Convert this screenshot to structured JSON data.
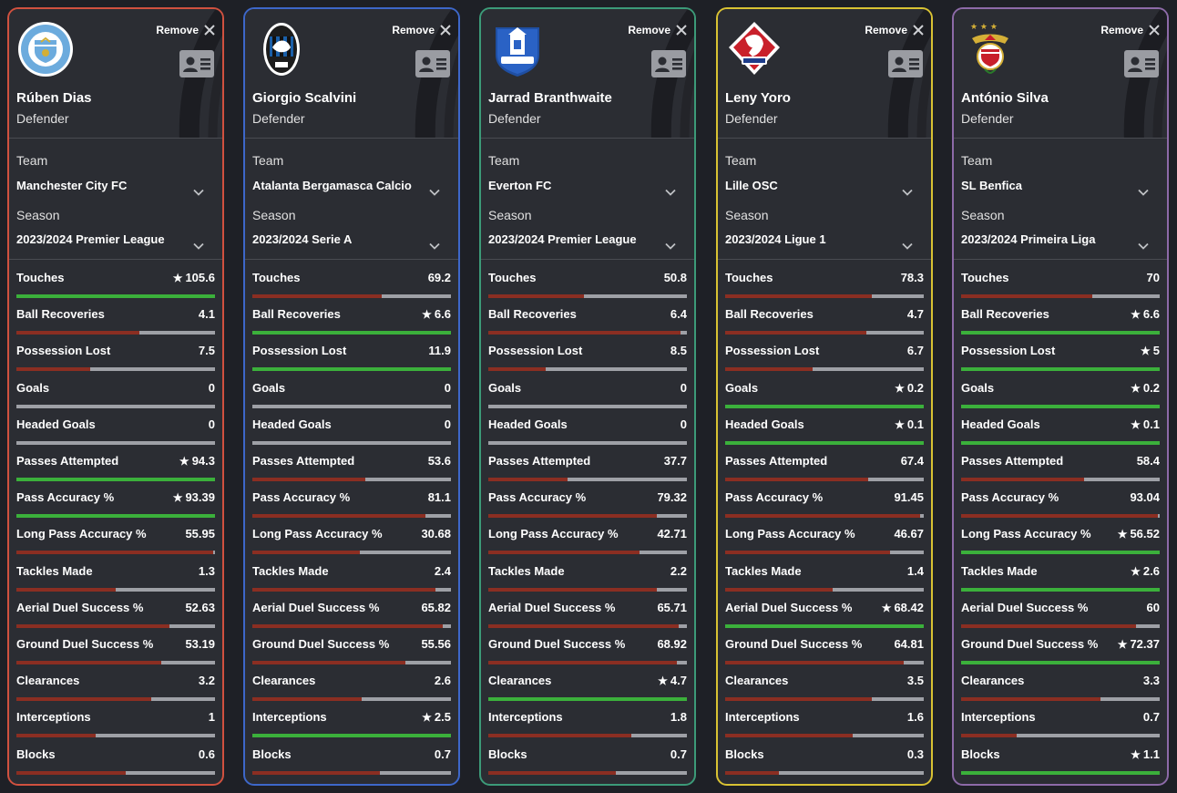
{
  "ui": {
    "remove_label": "Remove",
    "team_label": "Team",
    "season_label": "Season",
    "star_glyph": "★",
    "good_color": "#3bb03b",
    "low_color": "#8b2e22",
    "track_color": "#9ea0a6"
  },
  "stat_labels": [
    "Touches",
    "Ball Recoveries",
    "Possession Lost",
    "Goals",
    "Headed Goals",
    "Passes Attempted",
    "Pass Accuracy %",
    "Long Pass Accuracy %",
    "Tackles Made",
    "Aerial Duel Success %",
    "Ground Duel Success %",
    "Clearances",
    "Interceptions",
    "Blocks"
  ],
  "players": [
    {
      "name": "Rúben Dias",
      "position": "Defender",
      "team": "Manchester City FC",
      "season": "2023/2024 Premier League",
      "border": "#d0513f",
      "logo_icon": "manchester-city-crest-icon",
      "stats": [
        {
          "value": "105.6",
          "best": true,
          "level": 1.0
        },
        {
          "value": "4.1",
          "level": 0.62
        },
        {
          "value": "7.5",
          "level": 0.37
        },
        {
          "value": "0",
          "level": 0.0
        },
        {
          "value": "0",
          "level": 0.0
        },
        {
          "value": "94.3",
          "best": true,
          "level": 1.0
        },
        {
          "value": "93.39",
          "best": true,
          "level": 1.0
        },
        {
          "value": "55.95",
          "level": 0.99
        },
        {
          "value": "1.3",
          "level": 0.5
        },
        {
          "value": "52.63",
          "level": 0.77
        },
        {
          "value": "53.19",
          "level": 0.73
        },
        {
          "value": "3.2",
          "level": 0.68
        },
        {
          "value": "1",
          "level": 0.4
        },
        {
          "value": "0.6",
          "level": 0.55
        }
      ]
    },
    {
      "name": "Giorgio Scalvini",
      "position": "Defender",
      "team": "Atalanta Bergamasca Calcio",
      "season": "2023/2024 Serie A",
      "border": "#3d67c9",
      "logo_icon": "atalanta-crest-icon",
      "stats": [
        {
          "value": "69.2",
          "level": 0.65
        },
        {
          "value": "6.6",
          "best": true,
          "level": 1.0
        },
        {
          "value": "11.9",
          "level": 1.0
        },
        {
          "value": "0",
          "level": 0.0
        },
        {
          "value": "0",
          "level": 0.0
        },
        {
          "value": "53.6",
          "level": 0.57
        },
        {
          "value": "81.1",
          "level": 0.87
        },
        {
          "value": "30.68",
          "level": 0.54
        },
        {
          "value": "2.4",
          "level": 0.92
        },
        {
          "value": "65.82",
          "level": 0.96
        },
        {
          "value": "55.56",
          "level": 0.77
        },
        {
          "value": "2.6",
          "level": 0.55
        },
        {
          "value": "2.5",
          "best": true,
          "level": 1.0
        },
        {
          "value": "0.7",
          "level": 0.64
        }
      ]
    },
    {
      "name": "Jarrad Branthwaite",
      "position": "Defender",
      "team": "Everton FC",
      "season": "2023/2024 Premier League",
      "border": "#3c9a78",
      "logo_icon": "everton-crest-icon",
      "stats": [
        {
          "value": "50.8",
          "level": 0.48
        },
        {
          "value": "6.4",
          "level": 0.97
        },
        {
          "value": "8.5",
          "level": 0.29
        },
        {
          "value": "0",
          "level": 0.0
        },
        {
          "value": "0",
          "level": 0.0
        },
        {
          "value": "37.7",
          "level": 0.4
        },
        {
          "value": "79.32",
          "level": 0.85
        },
        {
          "value": "42.71",
          "level": 0.76
        },
        {
          "value": "2.2",
          "level": 0.85
        },
        {
          "value": "65.71",
          "level": 0.96
        },
        {
          "value": "68.92",
          "level": 0.95
        },
        {
          "value": "4.7",
          "best": true,
          "level": 1.0
        },
        {
          "value": "1.8",
          "level": 0.72
        },
        {
          "value": "0.7",
          "level": 0.64
        }
      ]
    },
    {
      "name": "Leny Yoro",
      "position": "Defender",
      "team": "Lille OSC",
      "season": "2023/2024 Ligue 1",
      "border": "#d9c233",
      "logo_icon": "lille-crest-icon",
      "stats": [
        {
          "value": "78.3",
          "level": 0.74
        },
        {
          "value": "4.7",
          "level": 0.71
        },
        {
          "value": "6.7",
          "level": 0.44
        },
        {
          "value": "0.2",
          "best": true,
          "level": 1.0
        },
        {
          "value": "0.1",
          "best": true,
          "level": 1.0
        },
        {
          "value": "67.4",
          "level": 0.72
        },
        {
          "value": "91.45",
          "level": 0.98
        },
        {
          "value": "46.67",
          "level": 0.83
        },
        {
          "value": "1.4",
          "level": 0.54
        },
        {
          "value": "68.42",
          "best": true,
          "level": 1.0
        },
        {
          "value": "64.81",
          "level": 0.9
        },
        {
          "value": "3.5",
          "level": 0.74
        },
        {
          "value": "1.6",
          "level": 0.64
        },
        {
          "value": "0.3",
          "level": 0.27
        }
      ]
    },
    {
      "name": "António Silva",
      "position": "Defender",
      "team": "SL Benfica",
      "season": "2023/2024 Primeira Liga",
      "border": "#8d6aa8",
      "logo_icon": "benfica-crest-icon",
      "stats": [
        {
          "value": "70",
          "level": 0.66
        },
        {
          "value": "6.6",
          "best": true,
          "level": 1.0
        },
        {
          "value": "5",
          "best": true,
          "level": 1.0
        },
        {
          "value": "0.2",
          "best": true,
          "level": 1.0
        },
        {
          "value": "0.1",
          "best": true,
          "level": 1.0
        },
        {
          "value": "58.4",
          "level": 0.62
        },
        {
          "value": "93.04",
          "level": 0.99
        },
        {
          "value": "56.52",
          "best": true,
          "level": 1.0
        },
        {
          "value": "2.6",
          "best": true,
          "level": 1.0
        },
        {
          "value": "60",
          "level": 0.88
        },
        {
          "value": "72.37",
          "best": true,
          "level": 1.0
        },
        {
          "value": "3.3",
          "level": 0.7
        },
        {
          "value": "0.7",
          "level": 0.28
        },
        {
          "value": "1.1",
          "best": true,
          "level": 1.0
        }
      ]
    }
  ]
}
